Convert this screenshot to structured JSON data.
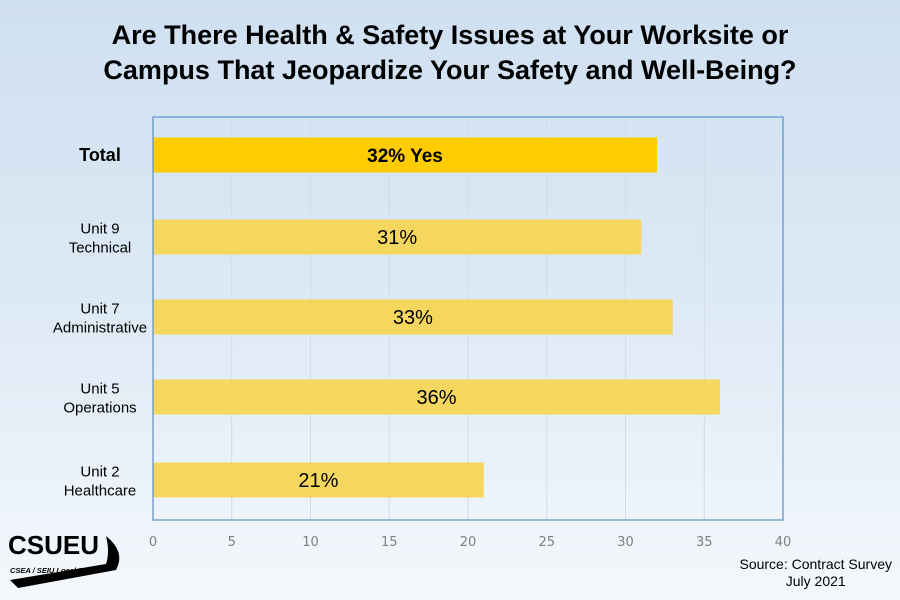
{
  "chart_data": {
    "type": "bar",
    "orientation": "horizontal",
    "title": "Are There Health & Safety Issues at Your Worksite or Campus That Jeopardize Your Safety and Well-Being?",
    "title_lines": [
      "Are There Health & Safety Issues at Your Worksite or",
      "Campus That Jeopardize Your Safety and Well-Being?"
    ],
    "categories": [
      {
        "lines": [
          "Total"
        ],
        "bold": true
      },
      {
        "lines": [
          "Unit 9",
          "Technical"
        ]
      },
      {
        "lines": [
          "Unit 7",
          "Administrative"
        ]
      },
      {
        "lines": [
          "Unit 5",
          "Operations"
        ]
      },
      {
        "lines": [
          "Unit 2",
          "Healthcare"
        ]
      }
    ],
    "values": [
      32,
      31,
      33,
      36,
      21
    ],
    "data_labels": [
      "32% Yes",
      "31%",
      "33%",
      "36%",
      "21%"
    ],
    "xlim": [
      0,
      40
    ],
    "xticks": [
      "0",
      "5",
      "10",
      "15",
      "20",
      "25",
      "30",
      "35",
      "40"
    ],
    "xlabel": "",
    "ylabel": "",
    "grid": true,
    "colors": {
      "highlight": "#ffcc00",
      "bar": "#f5d65e",
      "frame": "#5b8fc7",
      "grid": "#d4dbe3",
      "tick": "#7f7f7f"
    }
  },
  "source": {
    "line1": "Source: Contract Survey",
    "line2": "July 2021"
  },
  "logo": {
    "name": "CSUEU",
    "subtitle": "CSEA / SEIU Local 2579"
  }
}
